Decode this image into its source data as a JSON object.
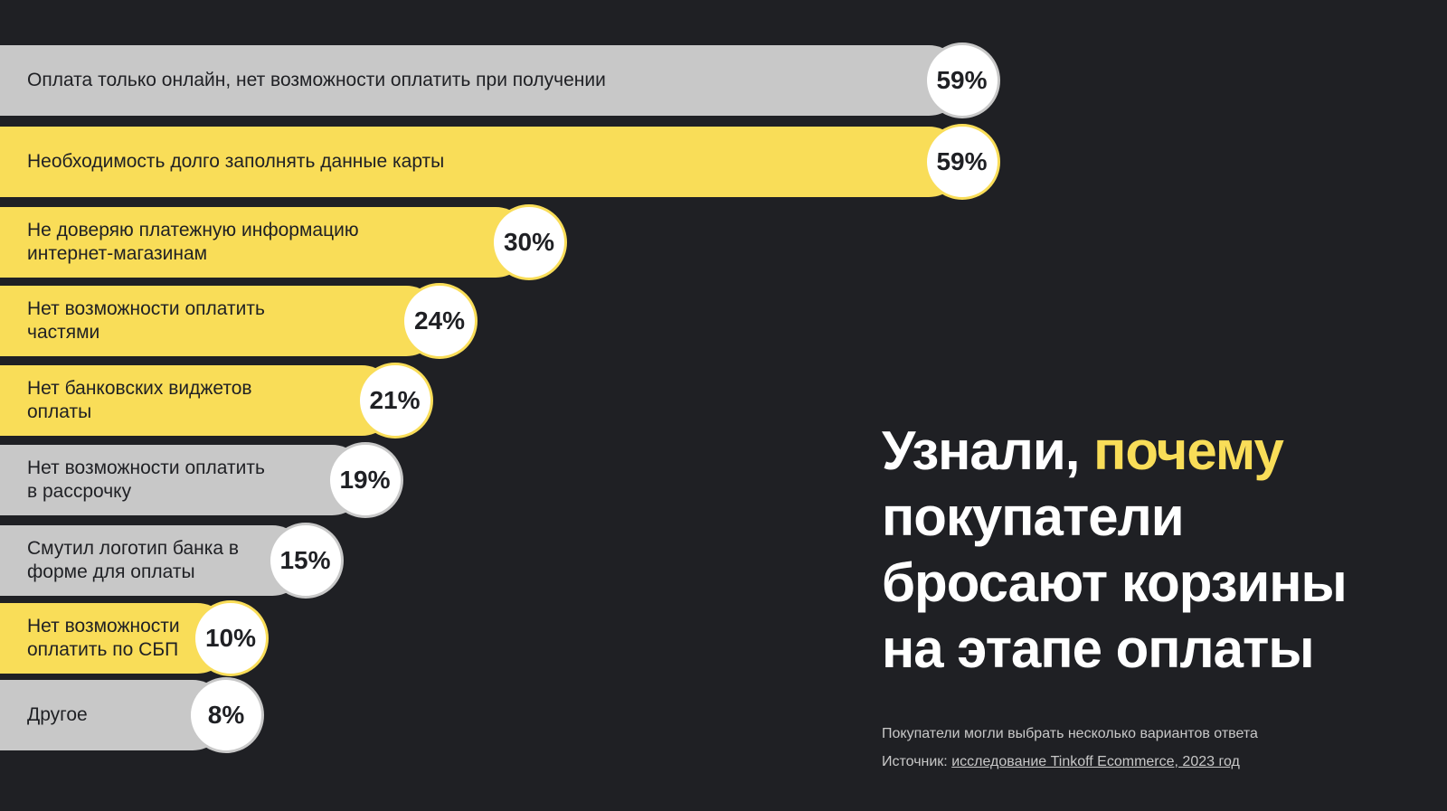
{
  "colors": {
    "background": "#1f2024",
    "gray": "#c8c8c8",
    "yellow": "#f9dd58"
  },
  "chart_data": {
    "type": "bar",
    "orientation": "horizontal",
    "categories": [
      "Оплата только онлайн, нет возможности оплатить при получении",
      "Необходимость долго заполнять данные карты",
      "Не доверяю платежную информацию\nинтернет-магазинам",
      "Нет возможности оплатить\nчастями",
      "Нет банковских  виджетов\nоплаты",
      "Нет возможности  оплатить\nв рассрочку",
      "Смутил логотип банка в\nформе для оплаты",
      "Нет возможности\nоплатить по СБП",
      "Другое"
    ],
    "values": [
      59,
      59,
      30,
      24,
      21,
      19,
      15,
      10,
      8
    ],
    "value_labels": [
      "59%",
      "59%",
      "30%",
      "24%",
      "21%",
      "19%",
      "15%",
      "10%",
      "8%"
    ],
    "bar_colors": [
      "gray",
      "yellow",
      "yellow",
      "yellow",
      "yellow",
      "gray",
      "gray",
      "yellow",
      "gray"
    ],
    "unit": "%"
  },
  "title": {
    "before": "Узнали, ",
    "accent": "почему",
    "after": " покупатели бросают корзины на этапе оплаты"
  },
  "footnote": "Покупатели могли выбрать несколько вариантов ответа",
  "source": {
    "label": "Источник: ",
    "link": "исследование Tinkoff Ecommerce, 2023 год"
  }
}
